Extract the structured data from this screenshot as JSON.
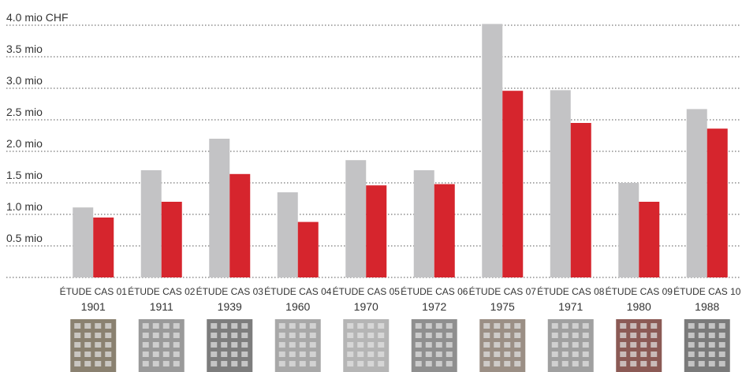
{
  "chart_data": {
    "type": "bar",
    "categories": [
      "ÉTUDE CAS 01",
      "ÉTUDE CAS 02",
      "ÉTUDE CAS 03",
      "ÉTUDE CAS 04",
      "ÉTUDE CAS 05",
      "ÉTUDE CAS 06",
      "ÉTUDE CAS 07",
      "ÉTUDE CAS 08",
      "ÉTUDE CAS 09",
      "ÉTUDE CAS 10"
    ],
    "years": [
      "1901",
      "1911",
      "1939",
      "1960",
      "1970",
      "1972",
      "1975",
      "1971",
      "1980",
      "1988"
    ],
    "series": [
      {
        "color": "#c3c3c5",
        "values": [
          1.11,
          1.7,
          2.2,
          1.35,
          1.86,
          1.7,
          4.02,
          2.97,
          1.5,
          2.67
        ]
      },
      {
        "color": "#d6252d",
        "values": [
          0.95,
          1.2,
          1.64,
          0.88,
          1.46,
          1.48,
          2.96,
          2.45,
          1.2,
          2.36
        ]
      }
    ],
    "ylim": [
      0,
      4
    ],
    "yticks": [
      {
        "value": 0.5,
        "label": "0.5 mio"
      },
      {
        "value": 1.0,
        "label": "1.0 mio"
      },
      {
        "value": 1.5,
        "label": "1.5 mio"
      },
      {
        "value": 2.0,
        "label": "2.0 mio"
      },
      {
        "value": 2.5,
        "label": "2.5 mio"
      },
      {
        "value": 3.0,
        "label": "3.0 mio"
      },
      {
        "value": 3.5,
        "label": "3.5 mio"
      },
      {
        "value": 4.0,
        "label": "4.0 mio CHF"
      }
    ],
    "grid": true
  }
}
